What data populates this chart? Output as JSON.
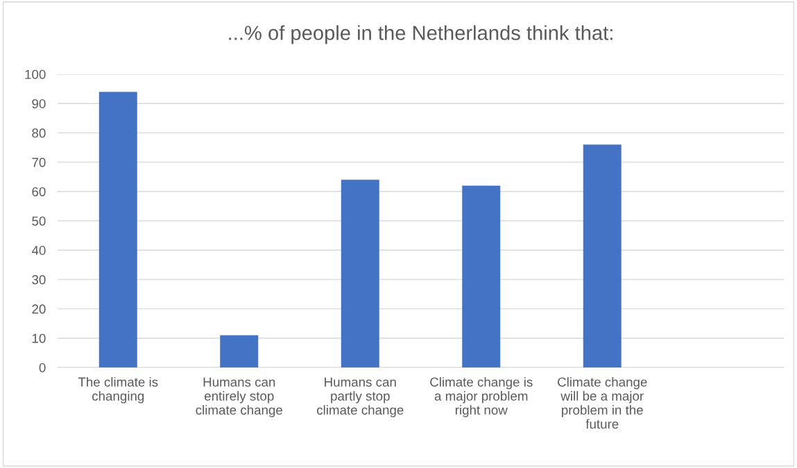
{
  "chart_data": {
    "type": "bar",
    "title": "...% of people in the Netherlands think that:",
    "categories": [
      "The climate is\nchanging",
      "Humans can\nentirely stop\nclimate change",
      "Humans can\npartly stop\nclimate change",
      "Climate change is\na major problem\nright now",
      "Climate change\nwill be a major\nproblem in the\nfuture",
      null
    ],
    "values": [
      94,
      11,
      64,
      62,
      76,
      null
    ],
    "color": "#4472c4",
    "ylim": [
      0,
      100
    ],
    "yticks": [
      0,
      10,
      20,
      30,
      40,
      50,
      60,
      70,
      80,
      90,
      100
    ],
    "grid": "y",
    "legend": false
  }
}
